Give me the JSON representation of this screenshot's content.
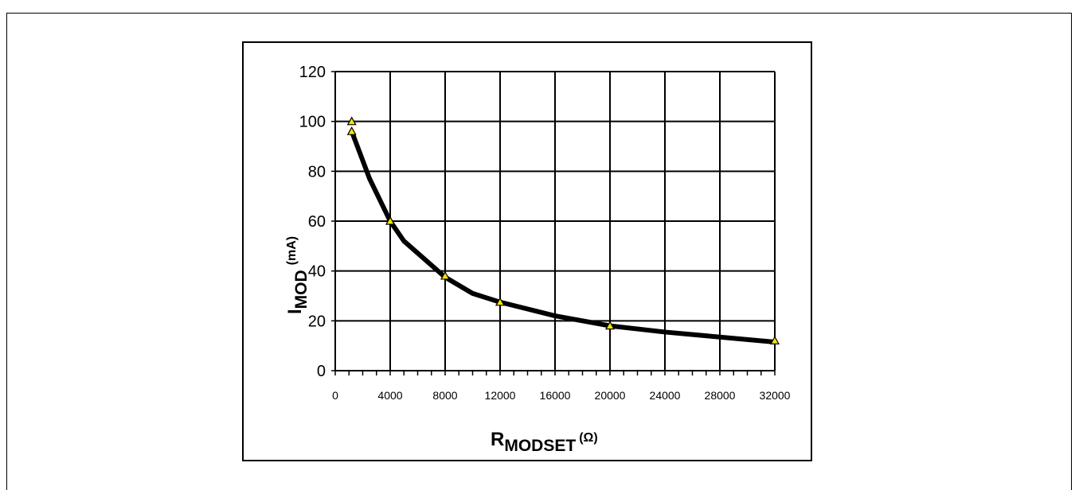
{
  "chart_data": {
    "type": "line",
    "xlabel": {
      "main": "R",
      "sub": "MODSET",
      "unit": "(Ω)"
    },
    "ylabel": {
      "main": "I",
      "sub": "MOD",
      "unit": "(mA)"
    },
    "xlim": [
      0,
      32000
    ],
    "ylim": [
      0,
      120
    ],
    "x_ticks": [
      0,
      4000,
      8000,
      12000,
      16000,
      20000,
      24000,
      28000,
      32000
    ],
    "x_tick_labels": [
      "0",
      "4000",
      "8000",
      "12000",
      "16000",
      "20000",
      "24000",
      "28000",
      "32000"
    ],
    "y_ticks": [
      0,
      20,
      40,
      60,
      80,
      100,
      120
    ],
    "y_tick_labels": [
      "0",
      "20",
      "40",
      "60",
      "80",
      "100",
      "120"
    ],
    "grid": true,
    "series": [
      {
        "color": "#000000",
        "marker_color": "#f2e600",
        "x": [
          1200,
          2500,
          4000,
          5000,
          8000,
          10000,
          12000,
          16000,
          20000,
          24000,
          28000,
          32000
        ],
        "y": [
          96,
          77,
          60,
          52,
          37.5,
          31,
          27.5,
          22,
          18,
          15.5,
          13.5,
          11.5
        ]
      }
    ],
    "markers": [
      {
        "x": 1200,
        "y": 100
      },
      {
        "x": 1200,
        "y": 96
      },
      {
        "x": 4000,
        "y": 60
      },
      {
        "x": 8000,
        "y": 38
      },
      {
        "x": 12000,
        "y": 27.5
      },
      {
        "x": 20000,
        "y": 18
      },
      {
        "x": 32000,
        "y": 12
      }
    ]
  }
}
